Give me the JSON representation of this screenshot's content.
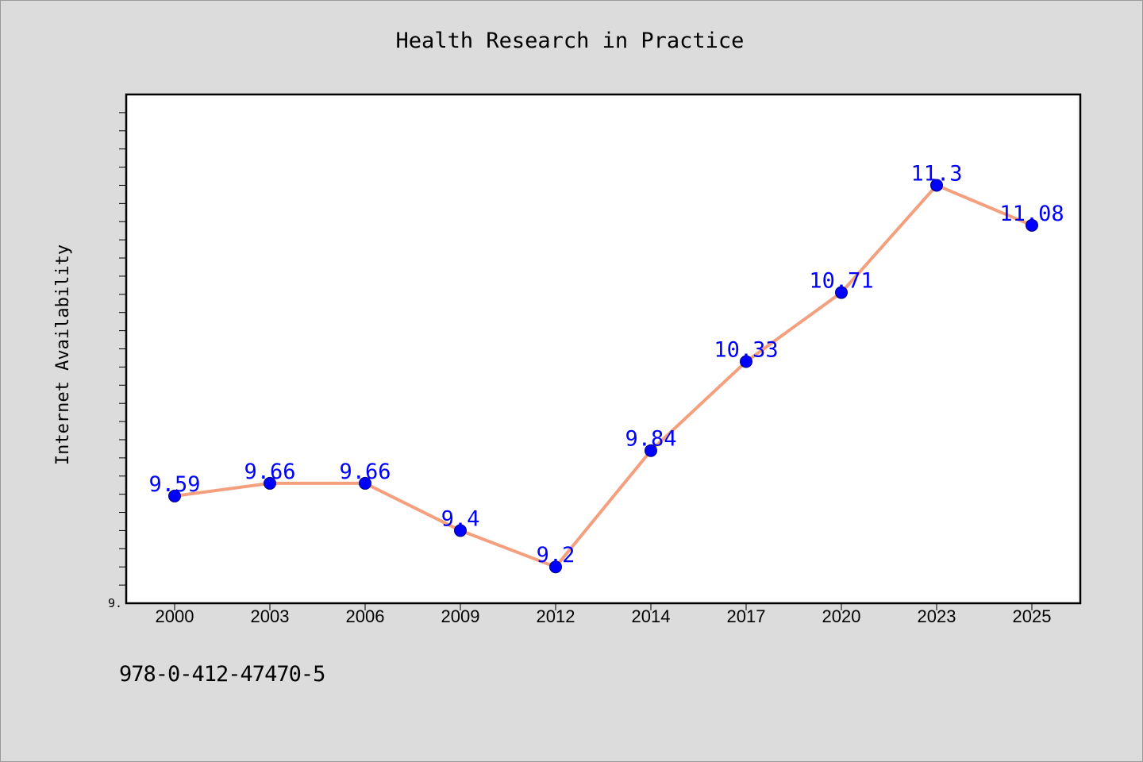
{
  "chart_data": {
    "type": "line",
    "title": "Health Research in Practice",
    "xlabel": "",
    "ylabel": "Internet Availability",
    "categories": [
      "2000",
      "2003",
      "2006",
      "2009",
      "2012",
      "2014",
      "2017",
      "2020",
      "2023",
      "2025"
    ],
    "series": [
      {
        "values": [
          9.59,
          9.66,
          9.66,
          9.4,
          9.2,
          9.84,
          10.33,
          10.71,
          11.3,
          11.08
        ],
        "labels": [
          "9.59",
          "9.66",
          "9.66",
          "9.4",
          "9.2",
          "9.84",
          "10.33",
          "10.71",
          "11.3",
          "11.08"
        ]
      }
    ],
    "ylim": [
      9.0,
      11.8
    ],
    "y_tick_label": "9.",
    "grid": false,
    "colors": {
      "line": "#f4a07e",
      "marker": "#0000ff",
      "data_label": "#0000ff",
      "plot_background": "#ffffff",
      "figure_background": "#dcdcdc"
    }
  },
  "footer": {
    "isbn": "978-0-412-47470-5"
  }
}
